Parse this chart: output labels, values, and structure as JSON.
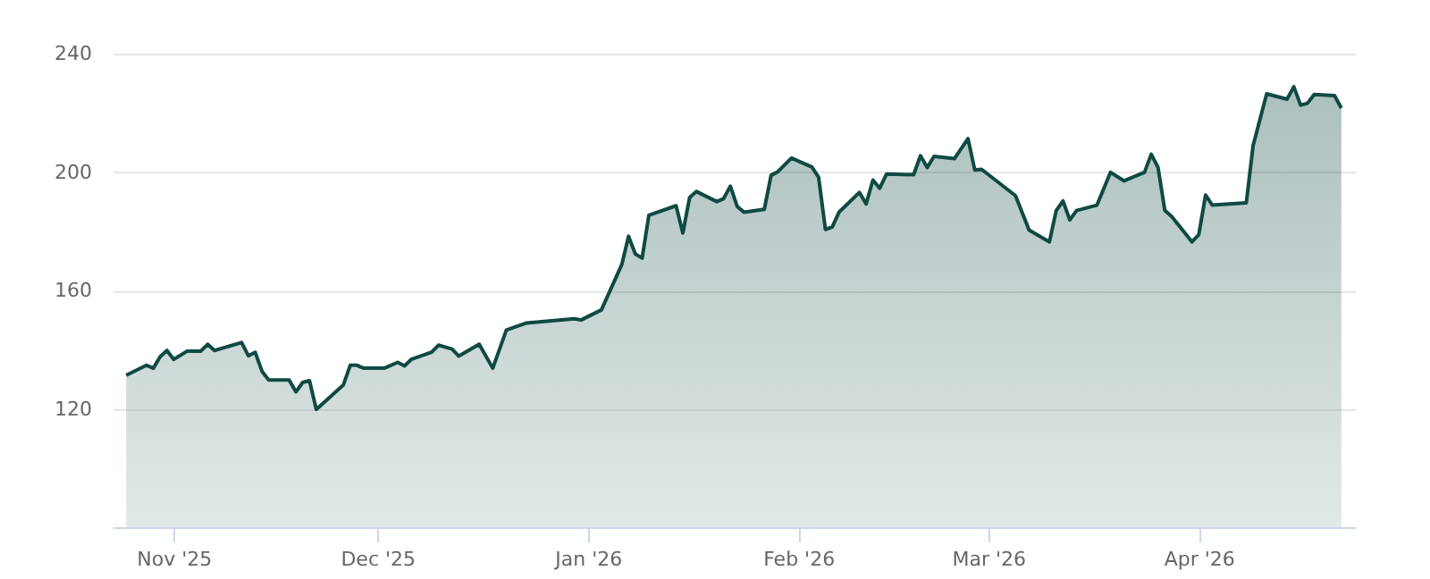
{
  "chart_data": {
    "type": "area",
    "x": [
      "2025-10-25",
      "2025-10-28",
      "2025-10-29",
      "2025-10-30",
      "2025-10-31",
      "2025-11-01",
      "2025-11-03",
      "2025-11-05",
      "2025-11-06",
      "2025-11-07",
      "2025-11-11",
      "2025-11-12",
      "2025-11-13",
      "2025-11-14",
      "2025-11-15",
      "2025-11-18",
      "2025-11-19",
      "2025-11-20",
      "2025-11-21",
      "2025-11-22",
      "2025-11-26",
      "2025-11-27",
      "2025-11-28",
      "2025-11-29",
      "2025-12-02",
      "2025-12-04",
      "2025-12-05",
      "2025-12-06",
      "2025-12-09",
      "2025-12-10",
      "2025-12-12",
      "2025-12-13",
      "2025-12-16",
      "2025-12-18",
      "2025-12-20",
      "2025-12-23",
      "2025-12-30",
      "2025-12-31",
      "2026-01-03",
      "2026-01-06",
      "2026-01-07",
      "2026-01-08",
      "2026-01-09",
      "2026-01-10",
      "2026-01-14",
      "2026-01-15",
      "2026-01-16",
      "2026-01-17",
      "2026-01-20",
      "2026-01-21",
      "2026-01-22",
      "2026-01-23",
      "2026-01-24",
      "2026-01-27",
      "2026-01-28",
      "2026-01-29",
      "2026-01-31",
      "2026-02-03",
      "2026-02-04",
      "2026-02-05",
      "2026-02-06",
      "2026-02-07",
      "2026-02-10",
      "2026-02-11",
      "2026-02-12",
      "2026-02-13",
      "2026-02-14",
      "2026-02-18",
      "2026-02-19",
      "2026-02-20",
      "2026-02-21",
      "2026-02-24",
      "2026-02-26",
      "2026-02-27",
      "2026-02-28",
      "2026-03-05",
      "2026-03-07",
      "2026-03-10",
      "2026-03-11",
      "2026-03-12",
      "2026-03-13",
      "2026-03-14",
      "2026-03-17",
      "2026-03-19",
      "2026-03-21",
      "2026-03-24",
      "2026-03-25",
      "2026-03-26",
      "2026-03-27",
      "2026-03-28",
      "2026-03-31",
      "2026-04-01",
      "2026-04-02",
      "2026-04-03",
      "2026-04-08",
      "2026-04-09",
      "2026-04-11",
      "2026-04-14",
      "2026-04-15",
      "2026-04-16",
      "2026-04-17",
      "2026-04-18",
      "2026-04-21",
      "2026-04-22"
    ],
    "series": [
      {
        "color": "#0f4a43",
        "values": [
          131.3,
          134.7,
          133.7,
          137.6,
          139.7,
          136.7,
          139.5,
          139.5,
          141.8,
          139.7,
          142.4,
          137.9,
          139.1,
          132.7,
          129.7,
          129.7,
          125.7,
          128.9,
          129.5,
          119.8,
          128.1,
          134.7,
          134.7,
          133.7,
          133.7,
          135.7,
          134.5,
          136.7,
          139.1,
          141.5,
          140.2,
          137.8,
          141.8,
          133.7,
          146.6,
          149.0,
          150.4,
          150.0,
          153.4,
          168.7,
          178.3,
          172.3,
          170.9,
          185.4,
          188.6,
          179.4,
          191.4,
          193.4,
          190.0,
          191.0,
          195.2,
          188.4,
          186.4,
          187.4,
          198.9,
          200.1,
          204.7,
          201.7,
          198.2,
          180.6,
          181.4,
          186.4,
          193.1,
          189.2,
          197.3,
          194.5,
          199.3,
          199.1,
          205.5,
          201.5,
          205.3,
          204.5,
          211.3,
          200.7,
          200.9,
          192.0,
          180.4,
          176.4,
          187.0,
          190.2,
          183.8,
          187.0,
          188.8,
          199.9,
          197.0,
          199.9,
          206.0,
          201.5,
          187.0,
          185.0,
          176.4,
          178.8,
          192.2,
          188.8,
          189.6,
          208.9,
          226.4,
          224.6,
          228.8,
          222.6,
          223.2,
          226.2,
          225.8,
          221.6
        ]
      }
    ],
    "xlim": [
      "2025-10-23",
      "2026-04-24"
    ],
    "xticks": [
      {
        "value": "2025-11-01",
        "label": "Nov '25"
      },
      {
        "value": "2025-12-01",
        "label": "Dec '25"
      },
      {
        "value": "2026-01-01",
        "label": "Jan '26"
      },
      {
        "value": "2026-02-01",
        "label": "Feb '26"
      },
      {
        "value": "2026-03-01",
        "label": "Mar '26"
      },
      {
        "value": "2026-04-01",
        "label": "Apr '26"
      }
    ],
    "ylim": [
      80,
      240
    ],
    "yticks": [
      120,
      160,
      200,
      240
    ],
    "grid": "y"
  }
}
